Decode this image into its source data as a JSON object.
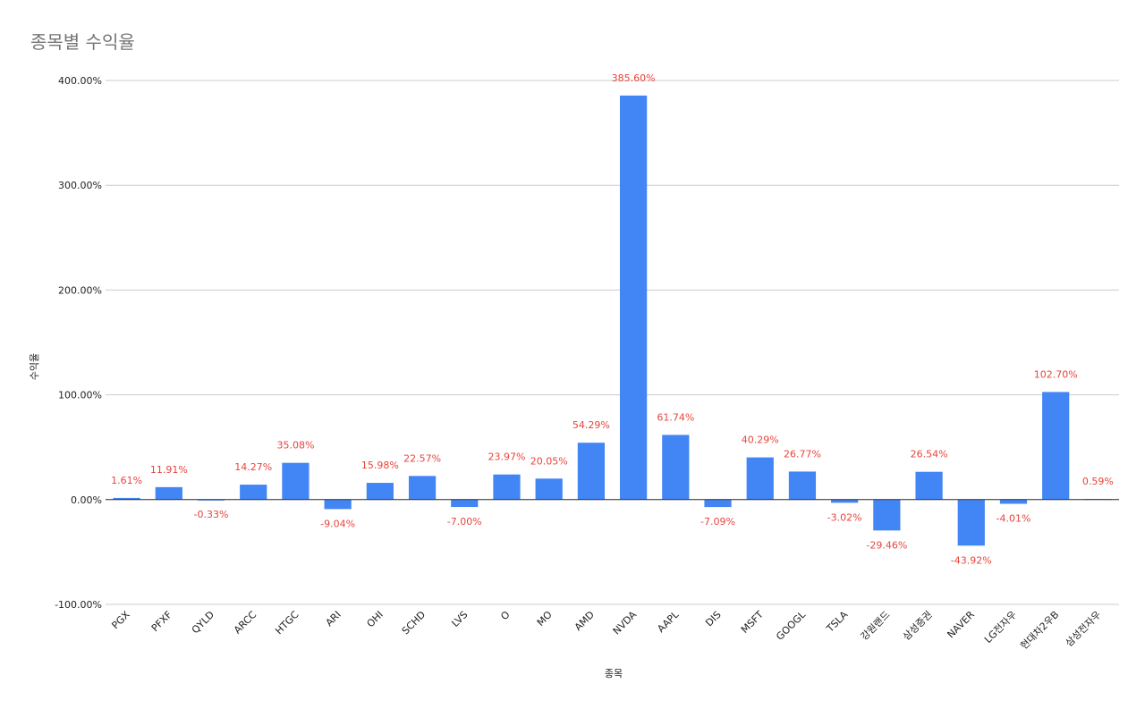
{
  "chart_data": {
    "type": "bar",
    "title": "종목별 수익율",
    "xlabel": "종목",
    "ylabel": "수익율",
    "ylim": [
      -100,
      400
    ],
    "yticks": [
      400,
      300,
      200,
      100,
      0,
      -100
    ],
    "ytick_labels": [
      "400.00%",
      "300.00%",
      "200.00%",
      "100.00%",
      "0.00%",
      "-100.00%"
    ],
    "grid": true,
    "legend": "none",
    "bar_color": "#4285f4",
    "label_color": "#e8453c",
    "categories": [
      "PGX",
      "PFXF",
      "QYLD",
      "ARCC",
      "HTGC",
      "ARI",
      "OHI",
      "SCHD",
      "LVS",
      "O",
      "MO",
      "AMD",
      "NVDA",
      "AAPL",
      "DIS",
      "MSFT",
      "GOOGL",
      "TSLA",
      "강원랜드",
      "삼성증권",
      "NAVER",
      "LG전자우",
      "현대차2우B",
      "삼성전자우"
    ],
    "values": [
      1.61,
      11.91,
      -0.33,
      14.27,
      35.08,
      -9.04,
      15.98,
      22.57,
      -7.0,
      23.97,
      20.05,
      54.29,
      385.6,
      61.74,
      -7.09,
      40.29,
      26.77,
      -3.02,
      -29.46,
      26.54,
      -43.92,
      -4.01,
      102.7,
      0.59
    ],
    "data_labels": [
      "1.61%",
      "11.91%",
      "-0.33%",
      "14.27%",
      "35.08%",
      "-9.04%",
      "15.98%",
      "22.57%",
      "-7.00%",
      "23.97%",
      "20.05%",
      "54.29%",
      "385.60%",
      "61.74%",
      "-7.09%",
      "40.29%",
      "26.77%",
      "-3.02%",
      "-29.46%",
      "26.54%",
      "-43.92%",
      "-4.01%",
      "102.70%",
      "0.59%"
    ]
  }
}
